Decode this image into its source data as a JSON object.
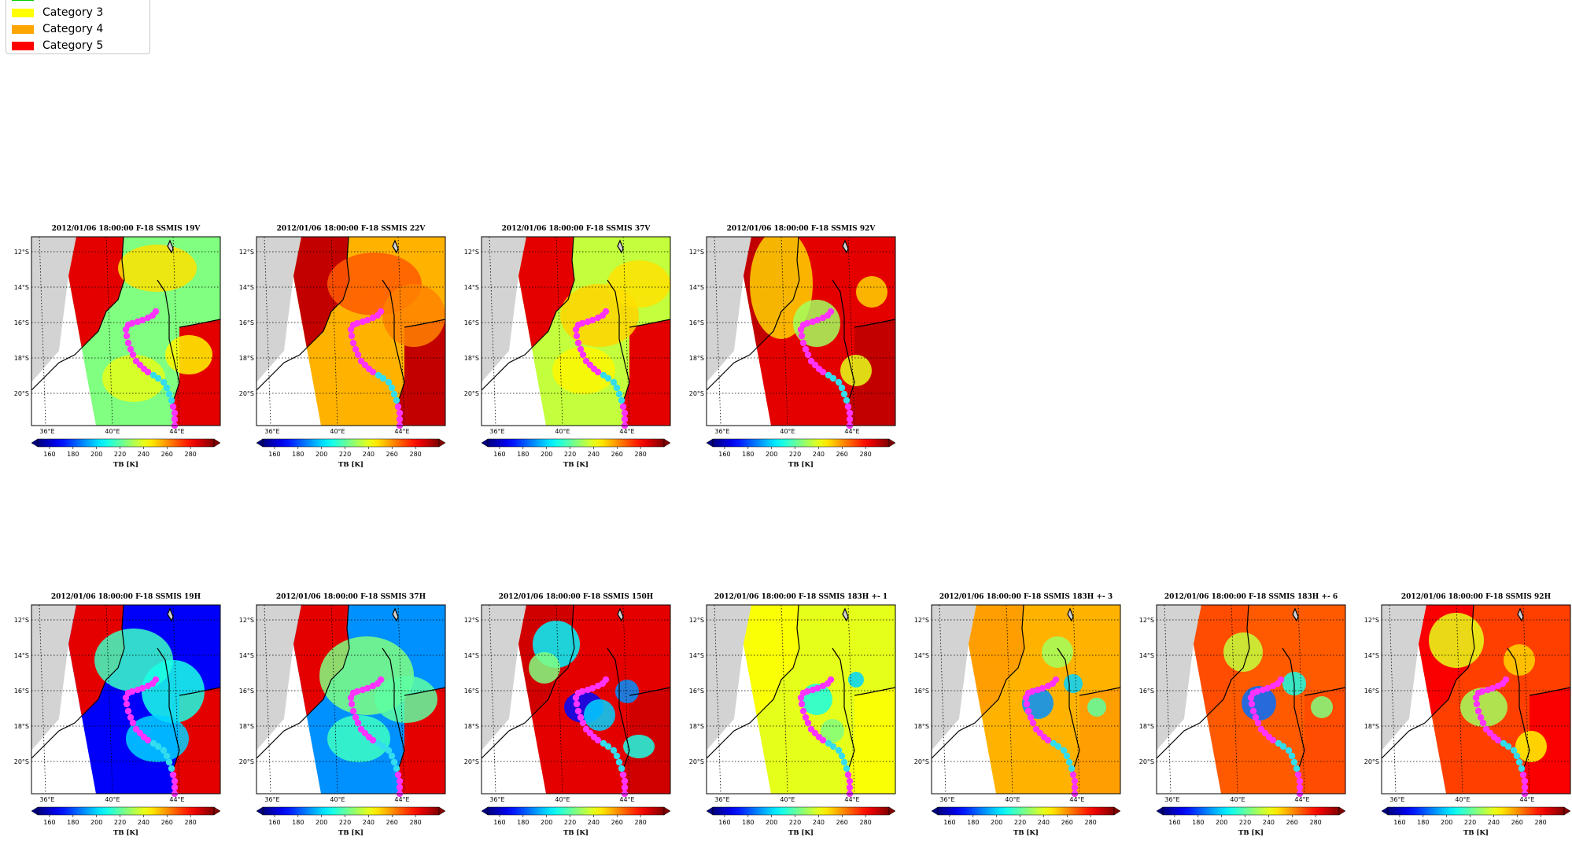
{
  "legend": {
    "items": [
      {
        "label": "Category 3",
        "color": "#ffff00"
      },
      {
        "label": "Category 4",
        "color": "#ffa500"
      },
      {
        "label": "Category 5",
        "color": "#ff0000"
      }
    ],
    "partial_item_color": "#00cc00"
  },
  "chart_data": [
    {
      "type": "heatmap",
      "title": "2012/01/06 18:00:00  F-18 SSMIS 19V",
      "style": "v19",
      "colorbar_label": "TB [K]",
      "colorbar_ticks": [
        160,
        180,
        200,
        220,
        240,
        260,
        280
      ],
      "clim": [
        150,
        300
      ],
      "lat_ticks": [
        "12°S",
        "14°S",
        "16°S",
        "18°S",
        "20°S"
      ],
      "lon_ticks": [
        "36°E",
        "40°E",
        "44°E"
      ]
    },
    {
      "type": "heatmap",
      "title": "2012/01/06 18:00:00  F-18 SSMIS 22V",
      "style": "v22",
      "colorbar_label": "TB [K]",
      "colorbar_ticks": [
        160,
        180,
        200,
        220,
        240,
        260,
        280
      ],
      "clim": [
        150,
        300
      ],
      "lat_ticks": [
        "12°S",
        "14°S",
        "16°S",
        "18°S",
        "20°S"
      ],
      "lon_ticks": [
        "36°E",
        "40°E",
        "44°E"
      ]
    },
    {
      "type": "heatmap",
      "title": "2012/01/06 18:00:00  F-18 SSMIS 37V",
      "style": "v37",
      "colorbar_label": "TB [K]",
      "colorbar_ticks": [
        160,
        180,
        200,
        220,
        240,
        260,
        280
      ],
      "clim": [
        150,
        300
      ],
      "lat_ticks": [
        "12°S",
        "14°S",
        "16°S",
        "18°S",
        "20°S"
      ],
      "lon_ticks": [
        "36°E",
        "40°E",
        "44°E"
      ]
    },
    {
      "type": "heatmap",
      "title": "2012/01/06 18:00:00  F-18 SSMIS 92V",
      "style": "v92",
      "colorbar_label": "TB [K]",
      "colorbar_ticks": [
        160,
        180,
        200,
        220,
        240,
        260,
        280
      ],
      "clim": [
        150,
        300
      ],
      "lat_ticks": [
        "12°S",
        "14°S",
        "16°S",
        "18°S",
        "20°S"
      ],
      "lon_ticks": [
        "36°E",
        "40°E",
        "44°E"
      ]
    },
    {
      "type": "heatmap",
      "title": "2012/01/06 18:00:00  F-18 SSMIS 19H",
      "style": "h19",
      "colorbar_label": "TB [K]",
      "colorbar_ticks": [
        160,
        180,
        200,
        220,
        240,
        260,
        280
      ],
      "clim": [
        150,
        300
      ],
      "lat_ticks": [
        "12°S",
        "14°S",
        "16°S",
        "18°S",
        "20°S"
      ],
      "lon_ticks": [
        "36°E",
        "40°E",
        "44°E"
      ]
    },
    {
      "type": "heatmap",
      "title": "2012/01/06 18:00:00  F-18 SSMIS 37H",
      "style": "h37",
      "colorbar_label": "TB [K]",
      "colorbar_ticks": [
        160,
        180,
        200,
        220,
        240,
        260,
        280
      ],
      "clim": [
        150,
        300
      ],
      "lat_ticks": [
        "12°S",
        "14°S",
        "16°S",
        "18°S",
        "20°S"
      ],
      "lon_ticks": [
        "36°E",
        "40°E",
        "44°E"
      ]
    },
    {
      "type": "heatmap",
      "title": "2012/01/06 18:00:00  F-18 SSMIS 150H",
      "style": "h150",
      "colorbar_label": "TB [K]",
      "colorbar_ticks": [
        160,
        180,
        200,
        220,
        240,
        260,
        280
      ],
      "clim": [
        150,
        300
      ],
      "lat_ticks": [
        "12°S",
        "14°S",
        "16°S",
        "18°S",
        "20°S"
      ],
      "lon_ticks": [
        "36°E",
        "40°E",
        "44°E"
      ]
    },
    {
      "type": "heatmap",
      "title": "2012/01/06 18:00:00  F-18 SSMIS 183H +- 1",
      "style": "h183a",
      "colorbar_label": "TB [K]",
      "colorbar_ticks": [
        160,
        180,
        200,
        220,
        240,
        260,
        280
      ],
      "clim": [
        150,
        300
      ],
      "lat_ticks": [
        "12°S",
        "14°S",
        "16°S",
        "18°S",
        "20°S"
      ],
      "lon_ticks": [
        "36°E",
        "40°E",
        "44°E"
      ]
    },
    {
      "type": "heatmap",
      "title": "2012/01/06 18:00:00  F-18 SSMIS 183H +- 3",
      "style": "h183b",
      "colorbar_label": "TB [K]",
      "colorbar_ticks": [
        160,
        180,
        200,
        220,
        240,
        260,
        280
      ],
      "clim": [
        150,
        300
      ],
      "lat_ticks": [
        "12°S",
        "14°S",
        "16°S",
        "18°S",
        "20°S"
      ],
      "lon_ticks": [
        "36°E",
        "40°E",
        "44°E"
      ]
    },
    {
      "type": "heatmap",
      "title": "2012/01/06 18:00:00  F-18 SSMIS 183H +- 6",
      "style": "h183c",
      "colorbar_label": "TB [K]",
      "colorbar_ticks": [
        160,
        180,
        200,
        220,
        240,
        260,
        280
      ],
      "clim": [
        150,
        300
      ],
      "lat_ticks": [
        "12°S",
        "14°S",
        "16°S",
        "18°S",
        "20°S"
      ],
      "lon_ticks": [
        "36°E",
        "40°E",
        "44°E"
      ]
    },
    {
      "type": "heatmap",
      "title": "2012/01/06 18:00:00  F-18 SSMIS 92H",
      "style": "h92",
      "colorbar_label": "TB [K]",
      "colorbar_ticks": [
        160,
        180,
        200,
        220,
        240,
        260,
        280
      ],
      "clim": [
        150,
        300
      ],
      "lat_ticks": [
        "12°S",
        "14°S",
        "16°S",
        "18°S",
        "20°S"
      ],
      "lon_ticks": [
        "36°E",
        "40°E",
        "44°E"
      ]
    }
  ]
}
